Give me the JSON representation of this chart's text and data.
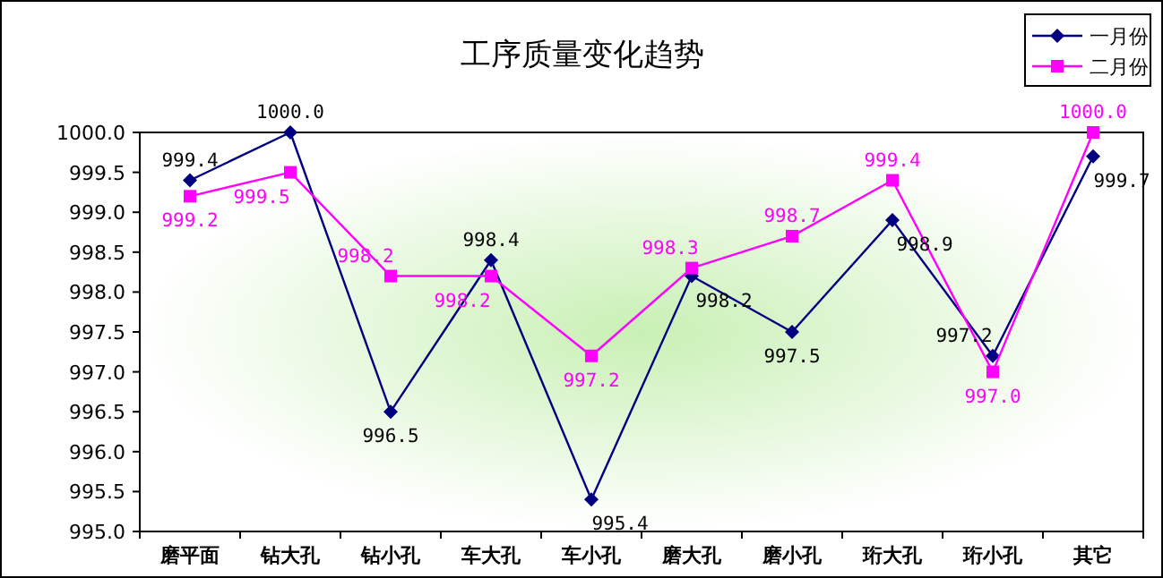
{
  "chart_data": {
    "type": "line",
    "title": "工序质量变化趋势",
    "categories": [
      "磨平面",
      "钻大孔",
      "钻小孔",
      "车大孔",
      "车小孔",
      "磨大孔",
      "磨小孔",
      "珩大孔",
      "珩小孔",
      "其它"
    ],
    "series": [
      {
        "name": "一月份",
        "color": "#000080",
        "marker": "diamond",
        "values": [
          999.4,
          1000.0,
          996.5,
          998.4,
          995.4,
          998.2,
          997.5,
          998.9,
          997.2,
          999.7
        ],
        "value_labels": [
          "999.4",
          "1000.0",
          "996.5",
          "998.4",
          "995.4",
          "998.2",
          "997.5",
          "998.9",
          "997.2",
          "999.7"
        ]
      },
      {
        "name": "二月份",
        "color": "#ff00ff",
        "marker": "square",
        "values": [
          999.2,
          999.5,
          998.2,
          998.2,
          997.2,
          998.3,
          998.7,
          999.4,
          997.0,
          1000.0
        ],
        "value_labels": [
          "999.2",
          "999.5",
          "998.2",
          "998.2",
          "997.2",
          "998.3",
          "998.7",
          "999.4",
          "997.0",
          "1000.0"
        ]
      }
    ],
    "ylim": [
      995,
      1000
    ],
    "yticks": [
      {
        "value": 995,
        "label": "995.0"
      },
      {
        "value": 995.5,
        "label": "995.5"
      },
      {
        "value": 996,
        "label": "996.0"
      },
      {
        "value": 996.5,
        "label": "996.5"
      },
      {
        "value": 997,
        "label": "997.0"
      },
      {
        "value": 997.5,
        "label": "997.5"
      },
      {
        "value": 998,
        "label": "998.0"
      },
      {
        "value": 998.5,
        "label": "998.5"
      },
      {
        "value": 999,
        "label": "999.0"
      },
      {
        "value": 999.5,
        "label": "999.5"
      },
      {
        "value": 1000,
        "label": "1000.0"
      }
    ],
    "legend": "top right",
    "grid": false,
    "line_style": "solid"
  }
}
